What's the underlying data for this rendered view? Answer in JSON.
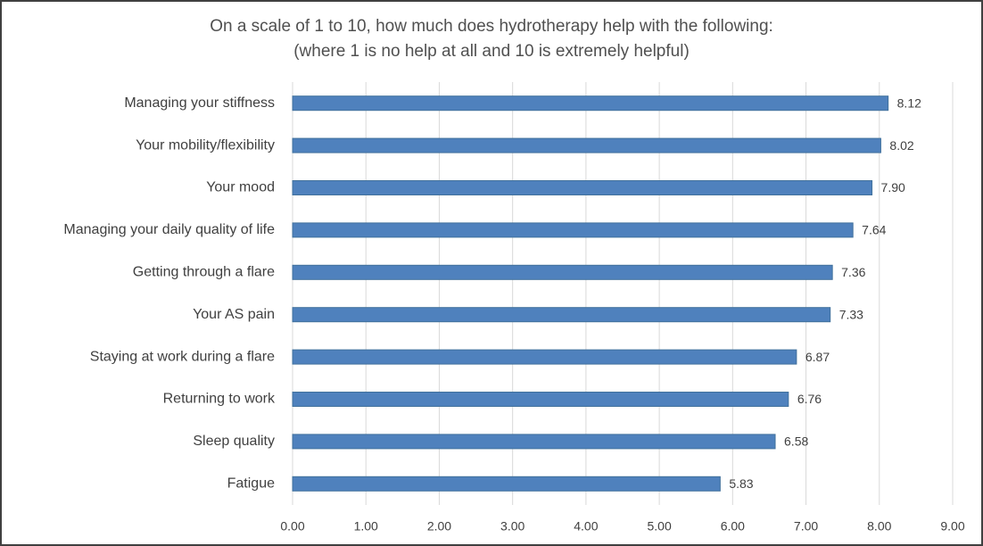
{
  "chart_data": {
    "type": "bar",
    "orientation": "horizontal",
    "title": "On a scale of 1 to 10, how much does hydrotherapy help with the following:",
    "subtitle": "(where 1 is no help at all and 10 is extremely helpful)",
    "categories": [
      "Managing your stiffness",
      "Your mobility/flexibility",
      "Your mood",
      "Managing your daily quality of life",
      "Getting through a flare",
      "Your AS pain",
      "Staying at work during a flare",
      "Returning to work",
      "Sleep quality",
      "Fatigue"
    ],
    "values": [
      8.12,
      8.02,
      7.9,
      7.64,
      7.36,
      7.33,
      6.87,
      6.76,
      6.58,
      5.83
    ],
    "value_labels": [
      "8.12",
      "8.02",
      "7.90",
      "7.64",
      "7.36",
      "7.33",
      "6.87",
      "6.76",
      "6.58",
      "5.83"
    ],
    "color": "#4f81bd",
    "xlim": [
      0,
      9
    ],
    "xticks": [
      {
        "value": 0,
        "label": "0.00"
      },
      {
        "value": 1,
        "label": "1.00"
      },
      {
        "value": 2,
        "label": "2.00"
      },
      {
        "value": 3,
        "label": "3.00"
      },
      {
        "value": 4,
        "label": "4.00"
      },
      {
        "value": 5,
        "label": "5.00"
      },
      {
        "value": 6,
        "label": "6.00"
      },
      {
        "value": 7,
        "label": "7.00"
      },
      {
        "value": 8,
        "label": "8.00"
      },
      {
        "value": 9,
        "label": "9.00"
      }
    ],
    "grid": true
  }
}
